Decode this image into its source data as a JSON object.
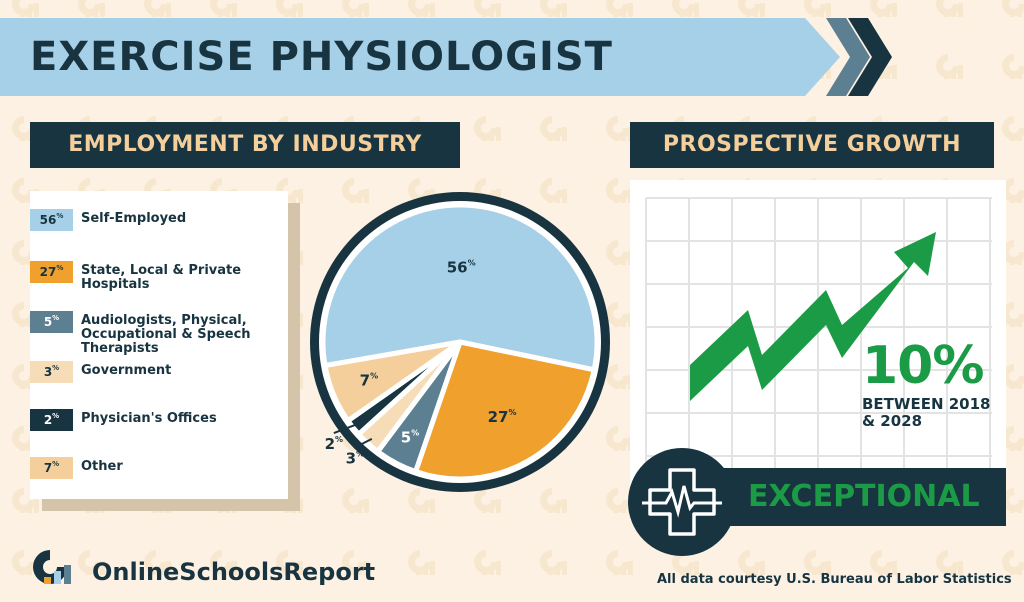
{
  "title": "EXERCISE PHYSIOLOGIST",
  "sections": {
    "industry": "EMPLOYMENT BY INDUSTRY",
    "growth": "PROSPECTIVE GROWTH"
  },
  "chart_data": {
    "type": "pie",
    "unit": "%",
    "slices": [
      {
        "label": "Self-Employed",
        "value": 56,
        "color": "#a6cfe8",
        "text_color": "#173440"
      },
      {
        "label": "State, Local & Private Hospitals",
        "value": 27,
        "color": "#efa02d",
        "text_color": "#173440"
      },
      {
        "label": "Audiologists, Physical, Occupational & Speech Therapists",
        "value": 5,
        "color": "#5d7f92",
        "text_color": "#ffffff"
      },
      {
        "label": "Government",
        "value": 3,
        "color": "#f6dcb7",
        "text_color": "#173440"
      },
      {
        "label": "Physician's Offices",
        "value": 2,
        "color": "#173440",
        "text_color": "#ffffff"
      },
      {
        "label": "Other",
        "value": 7,
        "color": "#f4cf9c",
        "text_color": "#173440"
      }
    ]
  },
  "growth": {
    "value": "10%",
    "period": "BETWEEN 2018 & 2028",
    "outlook": "EXCEPTIONAL"
  },
  "footer": {
    "brand": "OnlineSchoolsReport",
    "credit": "All data courtesy U.S. Bureau of Labor Statistics"
  },
  "colors": {
    "navy": "#173440",
    "green": "#1c9b46",
    "light_blue": "#a6cfe8",
    "background": "#fcf1e3"
  },
  "icons": [
    "chevron-right-icon",
    "medical-cross-icon",
    "heartbeat-icon",
    "growth-arrow-icon",
    "logo-icon"
  ]
}
